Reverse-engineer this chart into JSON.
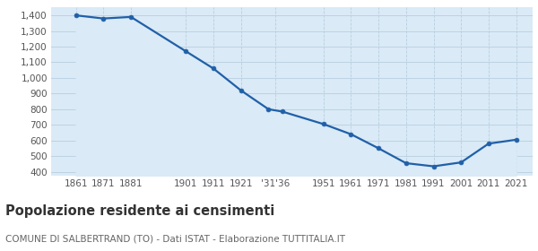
{
  "years": [
    1861,
    1871,
    1881,
    1901,
    1911,
    1921,
    1931,
    1936,
    1951,
    1961,
    1971,
    1981,
    1991,
    2001,
    2011,
    2021
  ],
  "population": [
    1400,
    1380,
    1390,
    1170,
    1060,
    920,
    800,
    785,
    705,
    640,
    550,
    455,
    435,
    460,
    580,
    605
  ],
  "x_tick_labels": [
    "1861",
    "1871",
    "1881",
    "1901",
    "1911",
    "1921",
    "'31'36",
    "1951",
    "1961",
    "1971",
    "1981",
    "1991",
    "2001",
    "2011",
    "2021"
  ],
  "x_tick_positions": [
    1861,
    1871,
    1881,
    1901,
    1911,
    1921,
    1933.5,
    1951,
    1961,
    1971,
    1981,
    1991,
    2001,
    2011,
    2021
  ],
  "xlim": [
    1852,
    2027
  ],
  "ylim": [
    375,
    1450
  ],
  "yticks": [
    400,
    500,
    600,
    700,
    800,
    900,
    1000,
    1100,
    1200,
    1300,
    1400
  ],
  "ytick_labels": [
    "400",
    "500",
    "600",
    "700",
    "800",
    "900",
    "1,000",
    "1,100",
    "1,200",
    "1,300",
    "1,400"
  ],
  "line_color": "#2060a8",
  "fill_color": "#daeaf6",
  "marker_color": "#2060a8",
  "bg_color": "#ffffff",
  "grid_color": "#b8cfe0",
  "title": "Popolazione residente ai censimenti",
  "subtitle": "COMUNE DI SALBERTRAND (TO) - Dati ISTAT - Elaborazione TUTTITALIA.IT",
  "title_fontsize": 10.5,
  "subtitle_fontsize": 7.5,
  "tick_fontsize": 7.5
}
